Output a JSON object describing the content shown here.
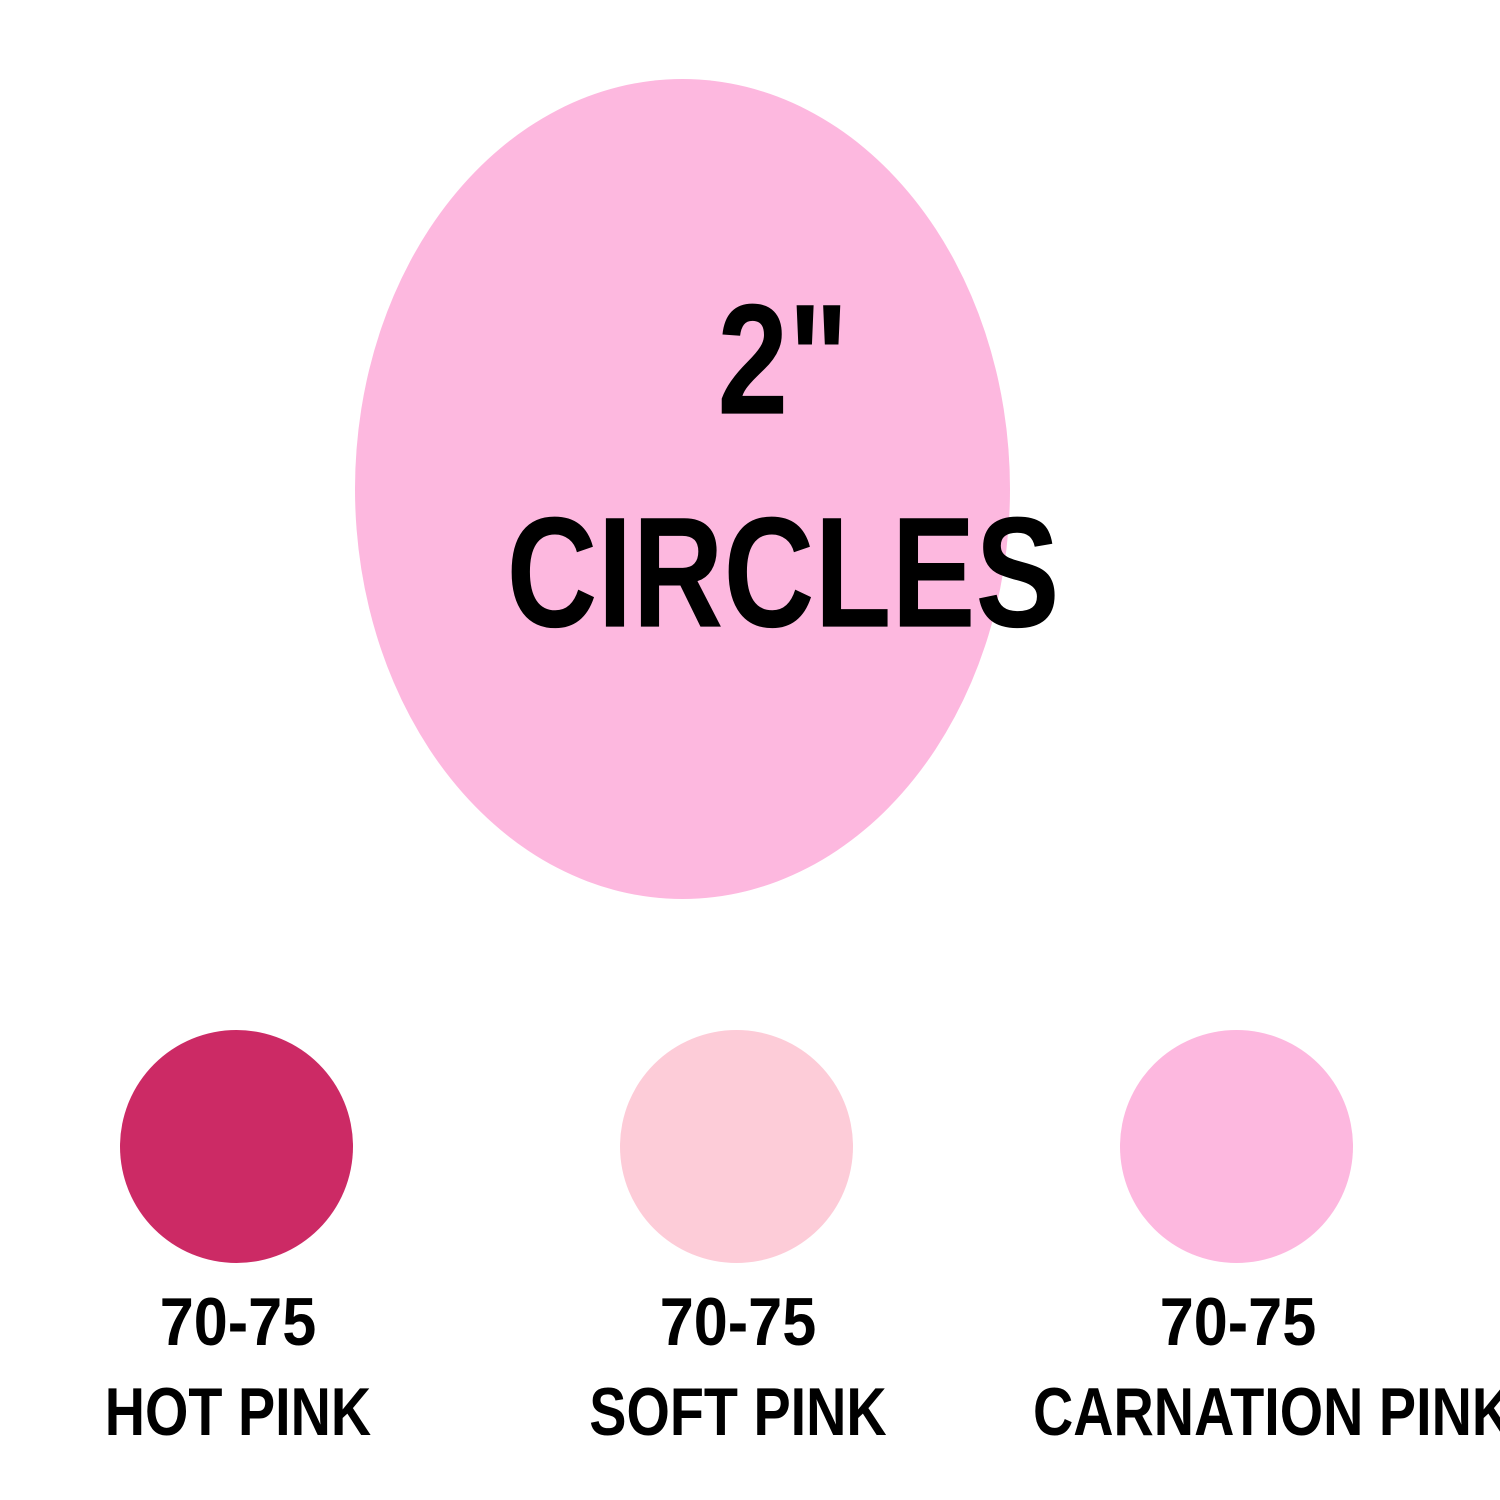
{
  "hero": {
    "line1": "2\"",
    "line2": "CIRCLES",
    "color": "#fdb8df"
  },
  "swatches": [
    {
      "code": "70-75",
      "name": "HOT PINK",
      "color": "#cc2a65"
    },
    {
      "code": "70-75",
      "name": "SOFT PINK",
      "color": "#fdccd8"
    },
    {
      "code": "70-75",
      "name": "CARNATION PINK",
      "color": "#fdb8df"
    }
  ]
}
